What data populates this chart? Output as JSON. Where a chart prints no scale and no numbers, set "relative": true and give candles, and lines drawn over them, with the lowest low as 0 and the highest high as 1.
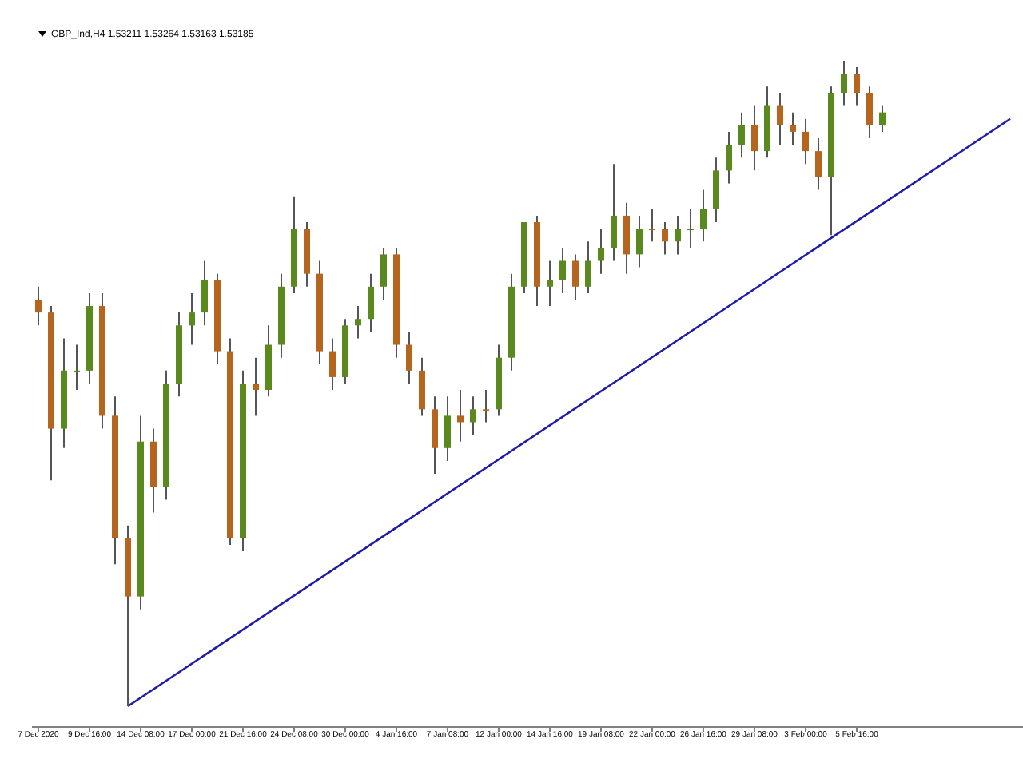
{
  "chart_data": {
    "type": "candlestick",
    "title": "GBP_Ind,H4 1.53211 1.53264 1.53163 1.53185",
    "relative": true,
    "categories": [
      "7 Dec 2020",
      null,
      null,
      null,
      "9 Dec 16:00",
      null,
      null,
      null,
      "14 Dec 08:00",
      null,
      null,
      null,
      "17 Dec 00:00",
      null,
      null,
      null,
      "21 Dec 16:00",
      null,
      null,
      null,
      "24 Dec 08:00",
      null,
      null,
      null,
      "30 Dec 00:00",
      null,
      null,
      null,
      "4 Jan 16:00",
      null,
      null,
      null,
      "7 Jan 08:00",
      null,
      null,
      null,
      "12 Jan 00:00",
      null,
      null,
      null,
      "14 Jan 16:00",
      null,
      null,
      null,
      "19 Jan 08:00",
      null,
      null,
      null,
      "22 Jan 00:00",
      null,
      null,
      null,
      "26 Jan 16:00",
      null,
      null,
      null,
      "29 Jan 08:00",
      null,
      null,
      null,
      "3 Feb 00:00",
      null,
      null,
      null,
      "5 Feb 16:00",
      null,
      null,
      null,
      null,
      null,
      null,
      null,
      null,
      null,
      null,
      null,
      null
    ],
    "series": [
      {
        "ohlc": [
          [
            0.63,
            0.65,
            0.59,
            0.61
          ],
          [
            0.61,
            0.62,
            0.35,
            0.43
          ],
          [
            0.43,
            0.57,
            0.4,
            0.52
          ],
          [
            0.52,
            0.56,
            0.49,
            0.52
          ],
          [
            0.52,
            0.64,
            0.5,
            0.62
          ],
          [
            0.62,
            0.64,
            0.43,
            0.45
          ],
          [
            0.45,
            0.48,
            0.22,
            0.26
          ],
          [
            0.26,
            0.28,
            0,
            0.17
          ],
          [
            0.17,
            0.45,
            0.15,
            0.41
          ],
          [
            0.41,
            0.43,
            0.3,
            0.34
          ],
          [
            0.34,
            0.52,
            0.32,
            0.5
          ],
          [
            0.5,
            0.61,
            0.48,
            0.59
          ],
          [
            0.59,
            0.64,
            0.56,
            0.61
          ],
          [
            0.61,
            0.69,
            0.59,
            0.66
          ],
          [
            0.66,
            0.67,
            0.53,
            0.55
          ],
          [
            0.55,
            0.57,
            0.25,
            0.26
          ],
          [
            0.26,
            0.52,
            0.24,
            0.5
          ],
          [
            0.5,
            0.54,
            0.45,
            0.49
          ],
          [
            0.49,
            0.59,
            0.48,
            0.56
          ],
          [
            0.56,
            0.67,
            0.54,
            0.65
          ],
          [
            0.65,
            0.79,
            0.64,
            0.74
          ],
          [
            0.74,
            0.75,
            0.65,
            0.67
          ],
          [
            0.67,
            0.69,
            0.53,
            0.55
          ],
          [
            0.55,
            0.57,
            0.49,
            0.51
          ],
          [
            0.51,
            0.6,
            0.5,
            0.59
          ],
          [
            0.59,
            0.62,
            0.57,
            0.6
          ],
          [
            0.6,
            0.67,
            0.58,
            0.65
          ],
          [
            0.65,
            0.71,
            0.63,
            0.7
          ],
          [
            0.7,
            0.71,
            0.54,
            0.56
          ],
          [
            0.56,
            0.58,
            0.5,
            0.52
          ],
          [
            0.52,
            0.54,
            0.45,
            0.46
          ],
          [
            0.46,
            0.48,
            0.36,
            0.4
          ],
          [
            0.4,
            0.48,
            0.38,
            0.45
          ],
          [
            0.45,
            0.49,
            0.41,
            0.44
          ],
          [
            0.44,
            0.48,
            0.42,
            0.46
          ],
          [
            0.46,
            0.49,
            0.44,
            0.46
          ],
          [
            0.46,
            0.56,
            0.45,
            0.54
          ],
          [
            0.54,
            0.67,
            0.52,
            0.65
          ],
          [
            0.65,
            0.75,
            0.64,
            0.75
          ],
          [
            0.75,
            0.76,
            0.62,
            0.65
          ],
          [
            0.65,
            0.69,
            0.62,
            0.66
          ],
          [
            0.66,
            0.71,
            0.64,
            0.69
          ],
          [
            0.69,
            0.7,
            0.63,
            0.65
          ],
          [
            0.65,
            0.72,
            0.64,
            0.69
          ],
          [
            0.69,
            0.74,
            0.67,
            0.71
          ],
          [
            0.71,
            0.84,
            0.69,
            0.76
          ],
          [
            0.76,
            0.78,
            0.67,
            0.7
          ],
          [
            0.7,
            0.76,
            0.68,
            0.74
          ],
          [
            0.74,
            0.77,
            0.72,
            0.74
          ],
          [
            0.74,
            0.75,
            0.7,
            0.72
          ],
          [
            0.72,
            0.76,
            0.7,
            0.74
          ],
          [
            0.74,
            0.77,
            0.71,
            0.74
          ],
          [
            0.74,
            0.8,
            0.72,
            0.77
          ],
          [
            0.77,
            0.85,
            0.75,
            0.83
          ],
          [
            0.83,
            0.89,
            0.81,
            0.87
          ],
          [
            0.87,
            0.92,
            0.85,
            0.9
          ],
          [
            0.9,
            0.93,
            0.83,
            0.86
          ],
          [
            0.86,
            0.96,
            0.85,
            0.93
          ],
          [
            0.93,
            0.95,
            0.87,
            0.9
          ],
          [
            0.9,
            0.92,
            0.87,
            0.89
          ],
          [
            0.89,
            0.91,
            0.84,
            0.86
          ],
          [
            0.86,
            0.88,
            0.8,
            0.82
          ],
          [
            0.82,
            0.96,
            0.73,
            0.95
          ],
          [
            0.95,
            1,
            0.93,
            0.98
          ],
          [
            0.98,
            0.99,
            0.93,
            0.95
          ],
          [
            0.95,
            0.96,
            0.88,
            0.9
          ],
          [
            0.9,
            0.93,
            0.89,
            0.92
          ],
          null,
          null,
          null,
          null,
          null,
          null,
          null,
          null,
          null,
          null
        ],
        "colors": [
          "#b5651d",
          "#b5651d",
          "#5a8a1e",
          "#5a8a1e",
          "#5a8a1e",
          "#b5651d",
          "#b5651d",
          "#b5651d",
          "#5a8a1e",
          "#b5651d",
          "#5a8a1e",
          "#5a8a1e",
          "#5a8a1e",
          "#5a8a1e",
          "#b5651d",
          "#b5651d",
          "#5a8a1e",
          "#b5651d",
          "#5a8a1e",
          "#5a8a1e",
          "#5a8a1e",
          "#b5651d",
          "#b5651d",
          "#b5651d",
          "#5a8a1e",
          "#5a8a1e",
          "#5a8a1e",
          "#5a8a1e",
          "#b5651d",
          "#b5651d",
          "#b5651d",
          "#b5651d",
          "#5a8a1e",
          "#b5651d",
          "#5a8a1e",
          "#b5651d",
          "#5a8a1e",
          "#5a8a1e",
          "#5a8a1e",
          "#b5651d",
          "#5a8a1e",
          "#5a8a1e",
          "#b5651d",
          "#5a8a1e",
          "#5a8a1e",
          "#5a8a1e",
          "#b5651d",
          "#5a8a1e",
          "#b5651d",
          "#b5651d",
          "#5a8a1e",
          "#5a8a1e",
          "#5a8a1e",
          "#5a8a1e",
          "#5a8a1e",
          "#5a8a1e",
          "#b5651d",
          "#5a8a1e",
          "#b5651d",
          "#b5651d",
          "#b5651d",
          "#b5651d",
          "#5a8a1e",
          "#5a8a1e",
          "#b5651d",
          "#b5651d",
          "#5a8a1e",
          null,
          null,
          null,
          null,
          null,
          null,
          null,
          null,
          null,
          null
        ]
      },
      {
        "type": "line",
        "color": "#1c1ca8",
        "values": [
          null,
          null,
          null,
          null,
          null,
          null,
          null,
          0,
          null,
          null,
          null,
          null,
          null,
          null,
          null,
          null,
          null,
          null,
          null,
          null,
          null,
          null,
          null,
          null,
          null,
          null,
          null,
          null,
          null,
          null,
          null,
          null,
          null,
          null,
          null,
          null,
          null,
          null,
          null,
          null,
          null,
          null,
          null,
          null,
          null,
          null,
          null,
          null,
          null,
          null,
          null,
          null,
          null,
          null,
          null,
          null,
          null,
          null,
          null,
          null,
          null,
          null,
          null,
          null,
          null,
          null,
          null,
          null,
          null,
          null,
          null,
          null,
          null,
          null,
          null,
          null,
          0.91
        ]
      }
    ]
  }
}
